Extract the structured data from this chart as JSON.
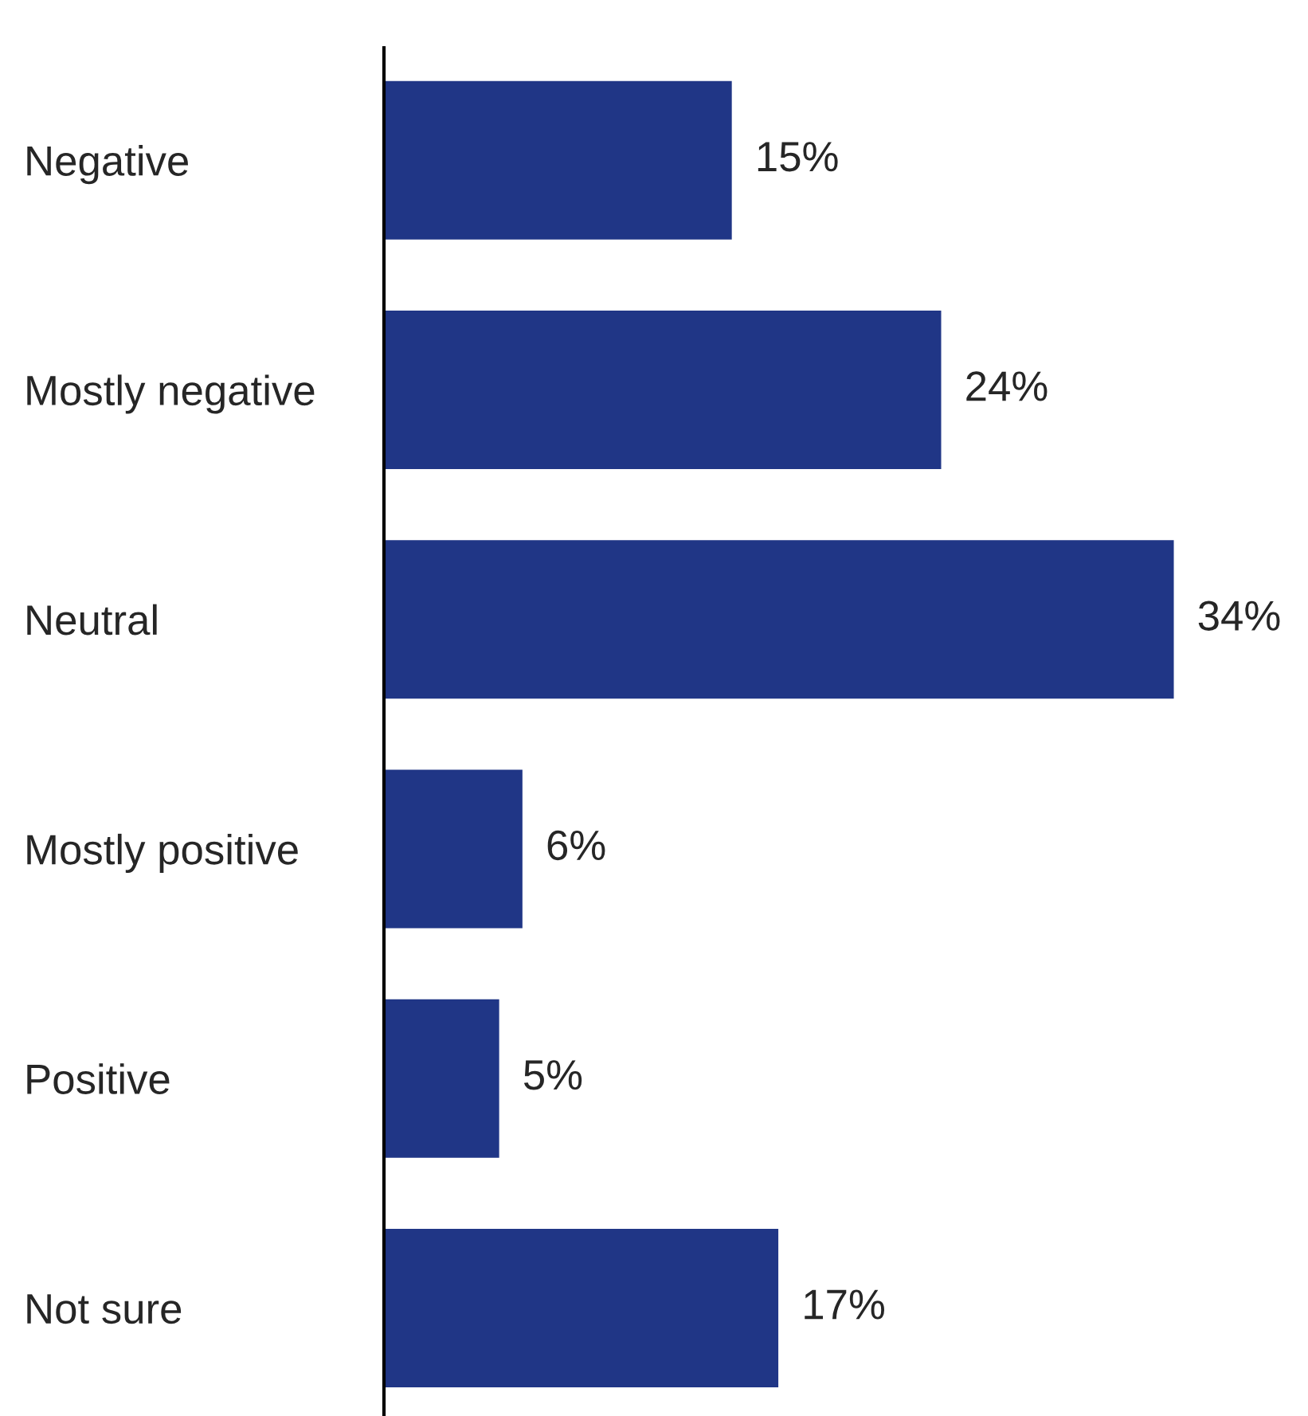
{
  "chart_data": {
    "type": "bar",
    "orientation": "horizontal",
    "categories": [
      "Negative",
      "Mostly negative",
      "Neutral",
      "Mostly positive",
      "Positive",
      "Not sure"
    ],
    "values": [
      15,
      24,
      34,
      6,
      5,
      17
    ],
    "value_labels": [
      "15%",
      "24%",
      "34%",
      "6%",
      "5%",
      "17%"
    ],
    "color": "#203686",
    "grid": false,
    "legend": false
  }
}
